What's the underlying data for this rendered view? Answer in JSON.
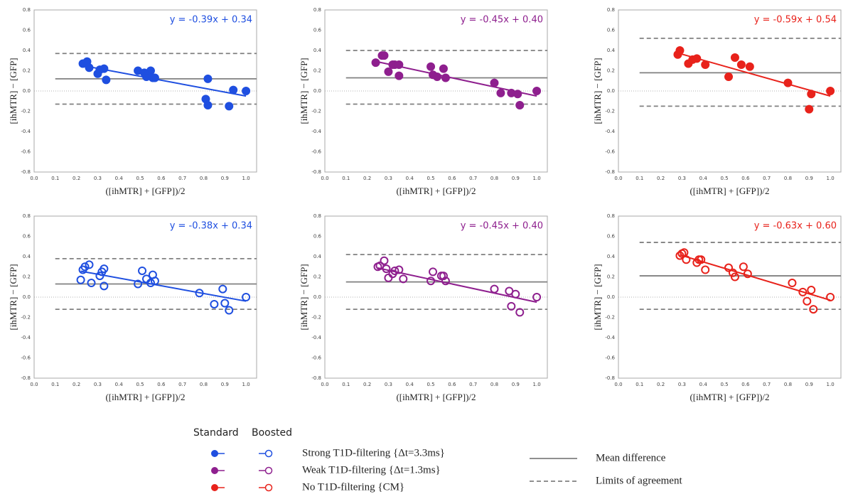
{
  "chart_data": [
    {
      "type": "scatter",
      "color": "#1f4fe0",
      "marker": "filled",
      "x": [
        0.23,
        0.25,
        0.26,
        0.3,
        0.31,
        0.33,
        0.34,
        0.49,
        0.52,
        0.53,
        0.55,
        0.56,
        0.57,
        0.82,
        0.81,
        0.82,
        0.92,
        0.94,
        1.0
      ],
      "values": [
        0.27,
        0.29,
        0.23,
        0.17,
        0.21,
        0.22,
        0.11,
        0.2,
        0.18,
        0.14,
        0.2,
        0.13,
        0.13,
        0.12,
        -0.08,
        -0.14,
        -0.15,
        0.01,
        0.0
      ],
      "xlim": [
        0,
        1.05
      ],
      "ylim": [
        -0.8,
        0.8
      ],
      "xticks": [
        {
          "value": 0,
          "label": "0.0"
        },
        0.1,
        0.2,
        0.3,
        0.4,
        0.5,
        0.6,
        0.7,
        0.8,
        0.9,
        {
          "value": 1,
          "label": "1.0"
        }
      ],
      "yticks": [
        -0.8,
        -0.6,
        -0.4,
        -0.2,
        {
          "value": 0,
          "label": "0.0"
        },
        0.2,
        0.4,
        0.6,
        0.8
      ],
      "xlabel": "([ihMTR] + [GFP])/2",
      "ylabel": "[ihMTR] − [GFP]",
      "fit": {
        "slope": -0.39,
        "intercept": 0.34,
        "label": "y = -0.39x + 0.34"
      },
      "mean_difference": 0.12,
      "limits_of_agreement": [
        -0.13,
        0.37
      ]
    },
    {
      "type": "scatter",
      "color": "#8e1f8e",
      "marker": "filled",
      "x": [
        0.24,
        0.27,
        0.28,
        0.3,
        0.32,
        0.33,
        0.35,
        0.35,
        0.5,
        0.51,
        0.53,
        0.56,
        0.57,
        0.8,
        0.83,
        0.88,
        0.91,
        0.92,
        1.0
      ],
      "values": [
        0.28,
        0.35,
        0.35,
        0.19,
        0.26,
        0.26,
        0.26,
        0.15,
        0.24,
        0.16,
        0.14,
        0.22,
        0.13,
        0.08,
        -0.02,
        -0.02,
        -0.03,
        -0.14,
        0.0
      ],
      "xlim": [
        0,
        1.05
      ],
      "ylim": [
        -0.8,
        0.8
      ],
      "xticks": [
        {
          "value": 0,
          "label": "0.0"
        },
        0.1,
        0.2,
        0.3,
        0.4,
        0.5,
        0.6,
        0.7,
        0.8,
        0.9,
        {
          "value": 1,
          "label": "1.0"
        }
      ],
      "yticks": [
        -0.8,
        -0.6,
        -0.4,
        -0.2,
        {
          "value": 0,
          "label": "0.0"
        },
        0.2,
        0.4,
        0.6,
        0.8
      ],
      "xlabel": "([ihMTR] + [GFP])/2",
      "ylabel": "[ihMTR] − [GFP]",
      "fit": {
        "slope": -0.45,
        "intercept": 0.4,
        "label": "y = -0.45x + 0.40"
      },
      "mean_difference": 0.13,
      "limits_of_agreement": [
        -0.13,
        0.4
      ]
    },
    {
      "type": "scatter",
      "color": "#e8221b",
      "marker": "filled",
      "x": [
        0.28,
        0.29,
        0.33,
        0.35,
        0.37,
        0.41,
        0.52,
        0.55,
        0.58,
        0.62,
        0.8,
        0.9,
        0.91,
        1.0
      ],
      "values": [
        0.36,
        0.4,
        0.27,
        0.31,
        0.32,
        0.26,
        0.14,
        0.33,
        0.26,
        0.24,
        0.08,
        -0.18,
        -0.03,
        0.0
      ],
      "xlim": [
        0,
        1.05
      ],
      "ylim": [
        -0.8,
        0.8
      ],
      "xticks": [
        {
          "value": 0,
          "label": "0.0"
        },
        0.1,
        0.2,
        0.3,
        0.4,
        0.5,
        0.6,
        0.7,
        0.8,
        0.9,
        {
          "value": 1,
          "label": "1.0"
        }
      ],
      "yticks": [
        -0.8,
        -0.6,
        -0.4,
        -0.2,
        {
          "value": 0,
          "label": "0.0"
        },
        0.2,
        0.4,
        0.6,
        0.8
      ],
      "xlabel": "([ihMTR] + [GFP])/2",
      "ylabel": "[ihMTR] − [GFP]",
      "fit": {
        "slope": -0.59,
        "intercept": 0.54,
        "label": "y = -0.59x + 0.54"
      },
      "mean_difference": 0.18,
      "limits_of_agreement": [
        -0.15,
        0.52
      ]
    },
    {
      "type": "scatter",
      "color": "#1f4fe0",
      "marker": "open",
      "x": [
        0.22,
        0.23,
        0.24,
        0.26,
        0.27,
        0.31,
        0.32,
        0.33,
        0.33,
        0.49,
        0.51,
        0.53,
        0.55,
        0.56,
        0.57,
        0.78,
        0.85,
        0.89,
        0.9,
        0.92,
        1.0
      ],
      "values": [
        0.17,
        0.27,
        0.3,
        0.32,
        0.14,
        0.21,
        0.25,
        0.28,
        0.11,
        0.13,
        0.26,
        0.18,
        0.14,
        0.22,
        0.16,
        0.04,
        -0.07,
        0.08,
        -0.06,
        -0.13,
        0.0
      ],
      "xlim": [
        0,
        1.05
      ],
      "ylim": [
        -0.8,
        0.8
      ],
      "xticks": [
        {
          "value": 0,
          "label": "0.0"
        },
        0.1,
        0.2,
        0.3,
        0.4,
        0.5,
        0.6,
        0.7,
        0.8,
        0.9,
        {
          "value": 1,
          "label": "1.0"
        }
      ],
      "yticks": [
        -0.8,
        -0.6,
        -0.4,
        -0.2,
        {
          "value": 0,
          "label": "0.0"
        },
        0.2,
        0.4,
        0.6,
        0.8
      ],
      "xlabel": "([ihMTR] + [GFP])/2",
      "ylabel": "[ihMTR] − [GFP]",
      "fit": {
        "slope": -0.38,
        "intercept": 0.34,
        "label": "y = -0.38x + 0.34"
      },
      "mean_difference": 0.13,
      "limits_of_agreement": [
        -0.12,
        0.38
      ]
    },
    {
      "type": "scatter",
      "color": "#8e1f8e",
      "marker": "open",
      "x": [
        0.25,
        0.26,
        0.28,
        0.29,
        0.3,
        0.32,
        0.33,
        0.35,
        0.37,
        0.5,
        0.51,
        0.55,
        0.56,
        0.57,
        0.8,
        0.87,
        0.88,
        0.9,
        0.92,
        1.0
      ],
      "values": [
        0.3,
        0.31,
        0.36,
        0.28,
        0.19,
        0.23,
        0.26,
        0.27,
        0.18,
        0.16,
        0.25,
        0.21,
        0.21,
        0.16,
        0.08,
        0.06,
        -0.09,
        0.03,
        -0.15,
        0.0
      ],
      "xlim": [
        0,
        1.05
      ],
      "ylim": [
        -0.8,
        0.8
      ],
      "xticks": [
        {
          "value": 0,
          "label": "0.0"
        },
        0.1,
        0.2,
        0.3,
        0.4,
        0.5,
        0.6,
        0.7,
        0.8,
        0.9,
        {
          "value": 1,
          "label": "1.0"
        }
      ],
      "yticks": [
        -0.8,
        -0.6,
        -0.4,
        -0.2,
        {
          "value": 0,
          "label": "0.0"
        },
        0.2,
        0.4,
        0.6,
        0.8
      ],
      "xlabel": "([ihMTR] + [GFP])/2",
      "ylabel": "[ihMTR] − [GFP]",
      "fit": {
        "slope": -0.45,
        "intercept": 0.4,
        "label": "y = -0.45x + 0.40"
      },
      "mean_difference": 0.15,
      "limits_of_agreement": [
        -0.12,
        0.42
      ]
    },
    {
      "type": "scatter",
      "color": "#e8221b",
      "marker": "open",
      "x": [
        0.29,
        0.3,
        0.31,
        0.32,
        0.37,
        0.38,
        0.39,
        0.41,
        0.52,
        0.54,
        0.55,
        0.59,
        0.61,
        0.82,
        0.87,
        0.89,
        0.91,
        0.92,
        1.0
      ],
      "values": [
        0.41,
        0.43,
        0.44,
        0.37,
        0.34,
        0.37,
        0.37,
        0.27,
        0.29,
        0.24,
        0.2,
        0.3,
        0.23,
        0.14,
        0.05,
        -0.04,
        0.07,
        -0.12,
        0.0
      ],
      "xlim": [
        0,
        1.05
      ],
      "ylim": [
        -0.8,
        0.8
      ],
      "xticks": [
        {
          "value": 0,
          "label": "0.0"
        },
        0.1,
        0.2,
        0.3,
        0.4,
        0.5,
        0.6,
        0.7,
        0.8,
        0.9,
        {
          "value": 1,
          "label": "1.0"
        }
      ],
      "yticks": [
        -0.8,
        -0.6,
        -0.4,
        -0.2,
        {
          "value": 0,
          "label": "0.0"
        },
        0.2,
        0.4,
        0.6,
        0.8
      ],
      "xlabel": "([ihMTR] + [GFP])/2",
      "ylabel": "[ihMTR] − [GFP]",
      "fit": {
        "slope": -0.63,
        "intercept": 0.6,
        "label": "y = -0.63x + 0.60"
      },
      "mean_difference": 0.21,
      "limits_of_agreement": [
        -0.12,
        0.54
      ]
    }
  ],
  "legend": {
    "headers": [
      "Standard",
      "Boosted"
    ],
    "entries": [
      {
        "label": "Strong T1D-filtering {Δt=3.3ms}",
        "color": "#1f4fe0"
      },
      {
        "label": "Weak T1D-filtering {Δt=1.3ms}",
        "color": "#8e1f8e"
      },
      {
        "label": "No T1D-filtering {CM}",
        "color": "#e8221b"
      }
    ],
    "lines": [
      "Mean difference",
      "Limits of agreement"
    ]
  }
}
